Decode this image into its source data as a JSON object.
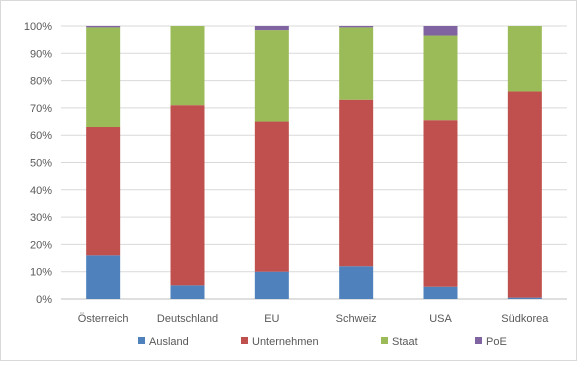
{
  "chart_data": {
    "type": "bar",
    "stacked": true,
    "percent_stacked": true,
    "categories": [
      "Österreich",
      "Deutschland",
      "EU",
      "Schweiz",
      "USA",
      "Südkorea"
    ],
    "series": [
      {
        "name": "Ausland",
        "color": "#4f81bd",
        "values": [
          16,
          5,
          10,
          12,
          4.5,
          0.5
        ]
      },
      {
        "name": "Unternehmen",
        "color": "#c0504d",
        "values": [
          47,
          66,
          55,
          61,
          61,
          75.5
        ]
      },
      {
        "name": "Staat",
        "color": "#9bbb59",
        "values": [
          36.5,
          29,
          33.5,
          26.5,
          31,
          24
        ]
      },
      {
        "name": "PoE",
        "color": "#8064a2",
        "values": [
          0.5,
          0,
          1.5,
          0.5,
          3.5,
          0
        ]
      }
    ],
    "y_ticks": [
      "0%",
      "10%",
      "20%",
      "30%",
      "40%",
      "50%",
      "60%",
      "70%",
      "80%",
      "90%",
      "100%"
    ],
    "ylim": [
      0,
      100
    ],
    "grid": true,
    "legend_position": "bottom"
  }
}
